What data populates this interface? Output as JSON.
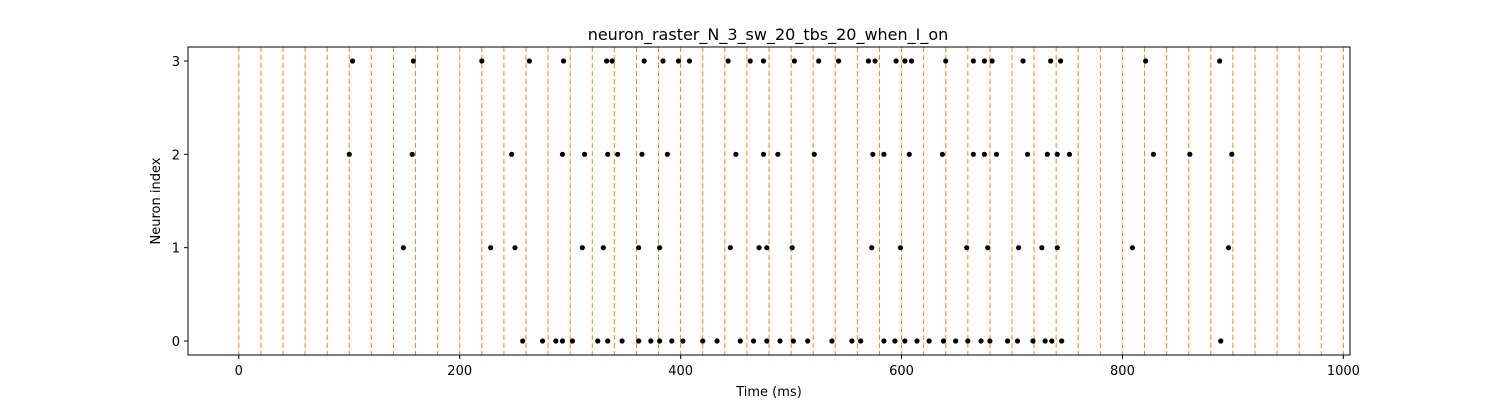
{
  "chart_data": {
    "type": "scatter",
    "title": "neuron_raster_N_3_sw_20_tbs_20_when_I_on",
    "xlabel": "Time (ms)",
    "ylabel": "Neuron index",
    "xlim": [
      -46,
      1006
    ],
    "ylim": [
      -0.15,
      3.15
    ],
    "xticks": [
      0,
      200,
      400,
      600,
      800,
      1000
    ],
    "yticks": [
      0,
      1,
      2,
      3
    ],
    "grid": false,
    "marker_color": "#000000",
    "vline_color": "#ff7f0e",
    "vlines": [
      0,
      20,
      40,
      60,
      80,
      100,
      120,
      140,
      160,
      180,
      200,
      220,
      240,
      260,
      280,
      300,
      320,
      340,
      360,
      380,
      400,
      420,
      440,
      460,
      480,
      500,
      520,
      540,
      560,
      580,
      600,
      620,
      640,
      660,
      680,
      700,
      720,
      740,
      760,
      780,
      800,
      820,
      840,
      860,
      880,
      900,
      920,
      940,
      960,
      980,
      1000
    ],
    "series": [
      {
        "neuron": 3,
        "x": [
          103,
          158,
          220,
          263,
          294,
          333,
          338,
          367,
          384,
          398,
          408,
          443,
          463,
          475,
          503,
          525,
          543,
          570,
          576,
          595,
          603,
          609,
          640,
          665,
          675,
          682,
          710,
          735,
          744,
          821,
          888
        ]
      },
      {
        "neuron": 2,
        "x": [
          100,
          157,
          247,
          293,
          313,
          334,
          343,
          365,
          388,
          450,
          475,
          488,
          521,
          574,
          584,
          607,
          637,
          665,
          675,
          686,
          714,
          732,
          741,
          752,
          828,
          861,
          899
        ]
      },
      {
        "neuron": 1,
        "x": [
          149,
          228,
          250,
          311,
          330,
          362,
          381,
          445,
          471,
          478,
          501,
          573,
          599,
          659,
          678,
          706,
          727,
          741,
          809,
          896
        ]
      },
      {
        "neuron": 0,
        "x": [
          257,
          275,
          287,
          293,
          302,
          325,
          334,
          347,
          362,
          373,
          381,
          392,
          402,
          420,
          433,
          454,
          466,
          478,
          490,
          502,
          515,
          537,
          555,
          563,
          584,
          594,
          603,
          614,
          625,
          638,
          649,
          660,
          672,
          680,
          696,
          705,
          719,
          730,
          736,
          745,
          889
        ]
      }
    ]
  }
}
